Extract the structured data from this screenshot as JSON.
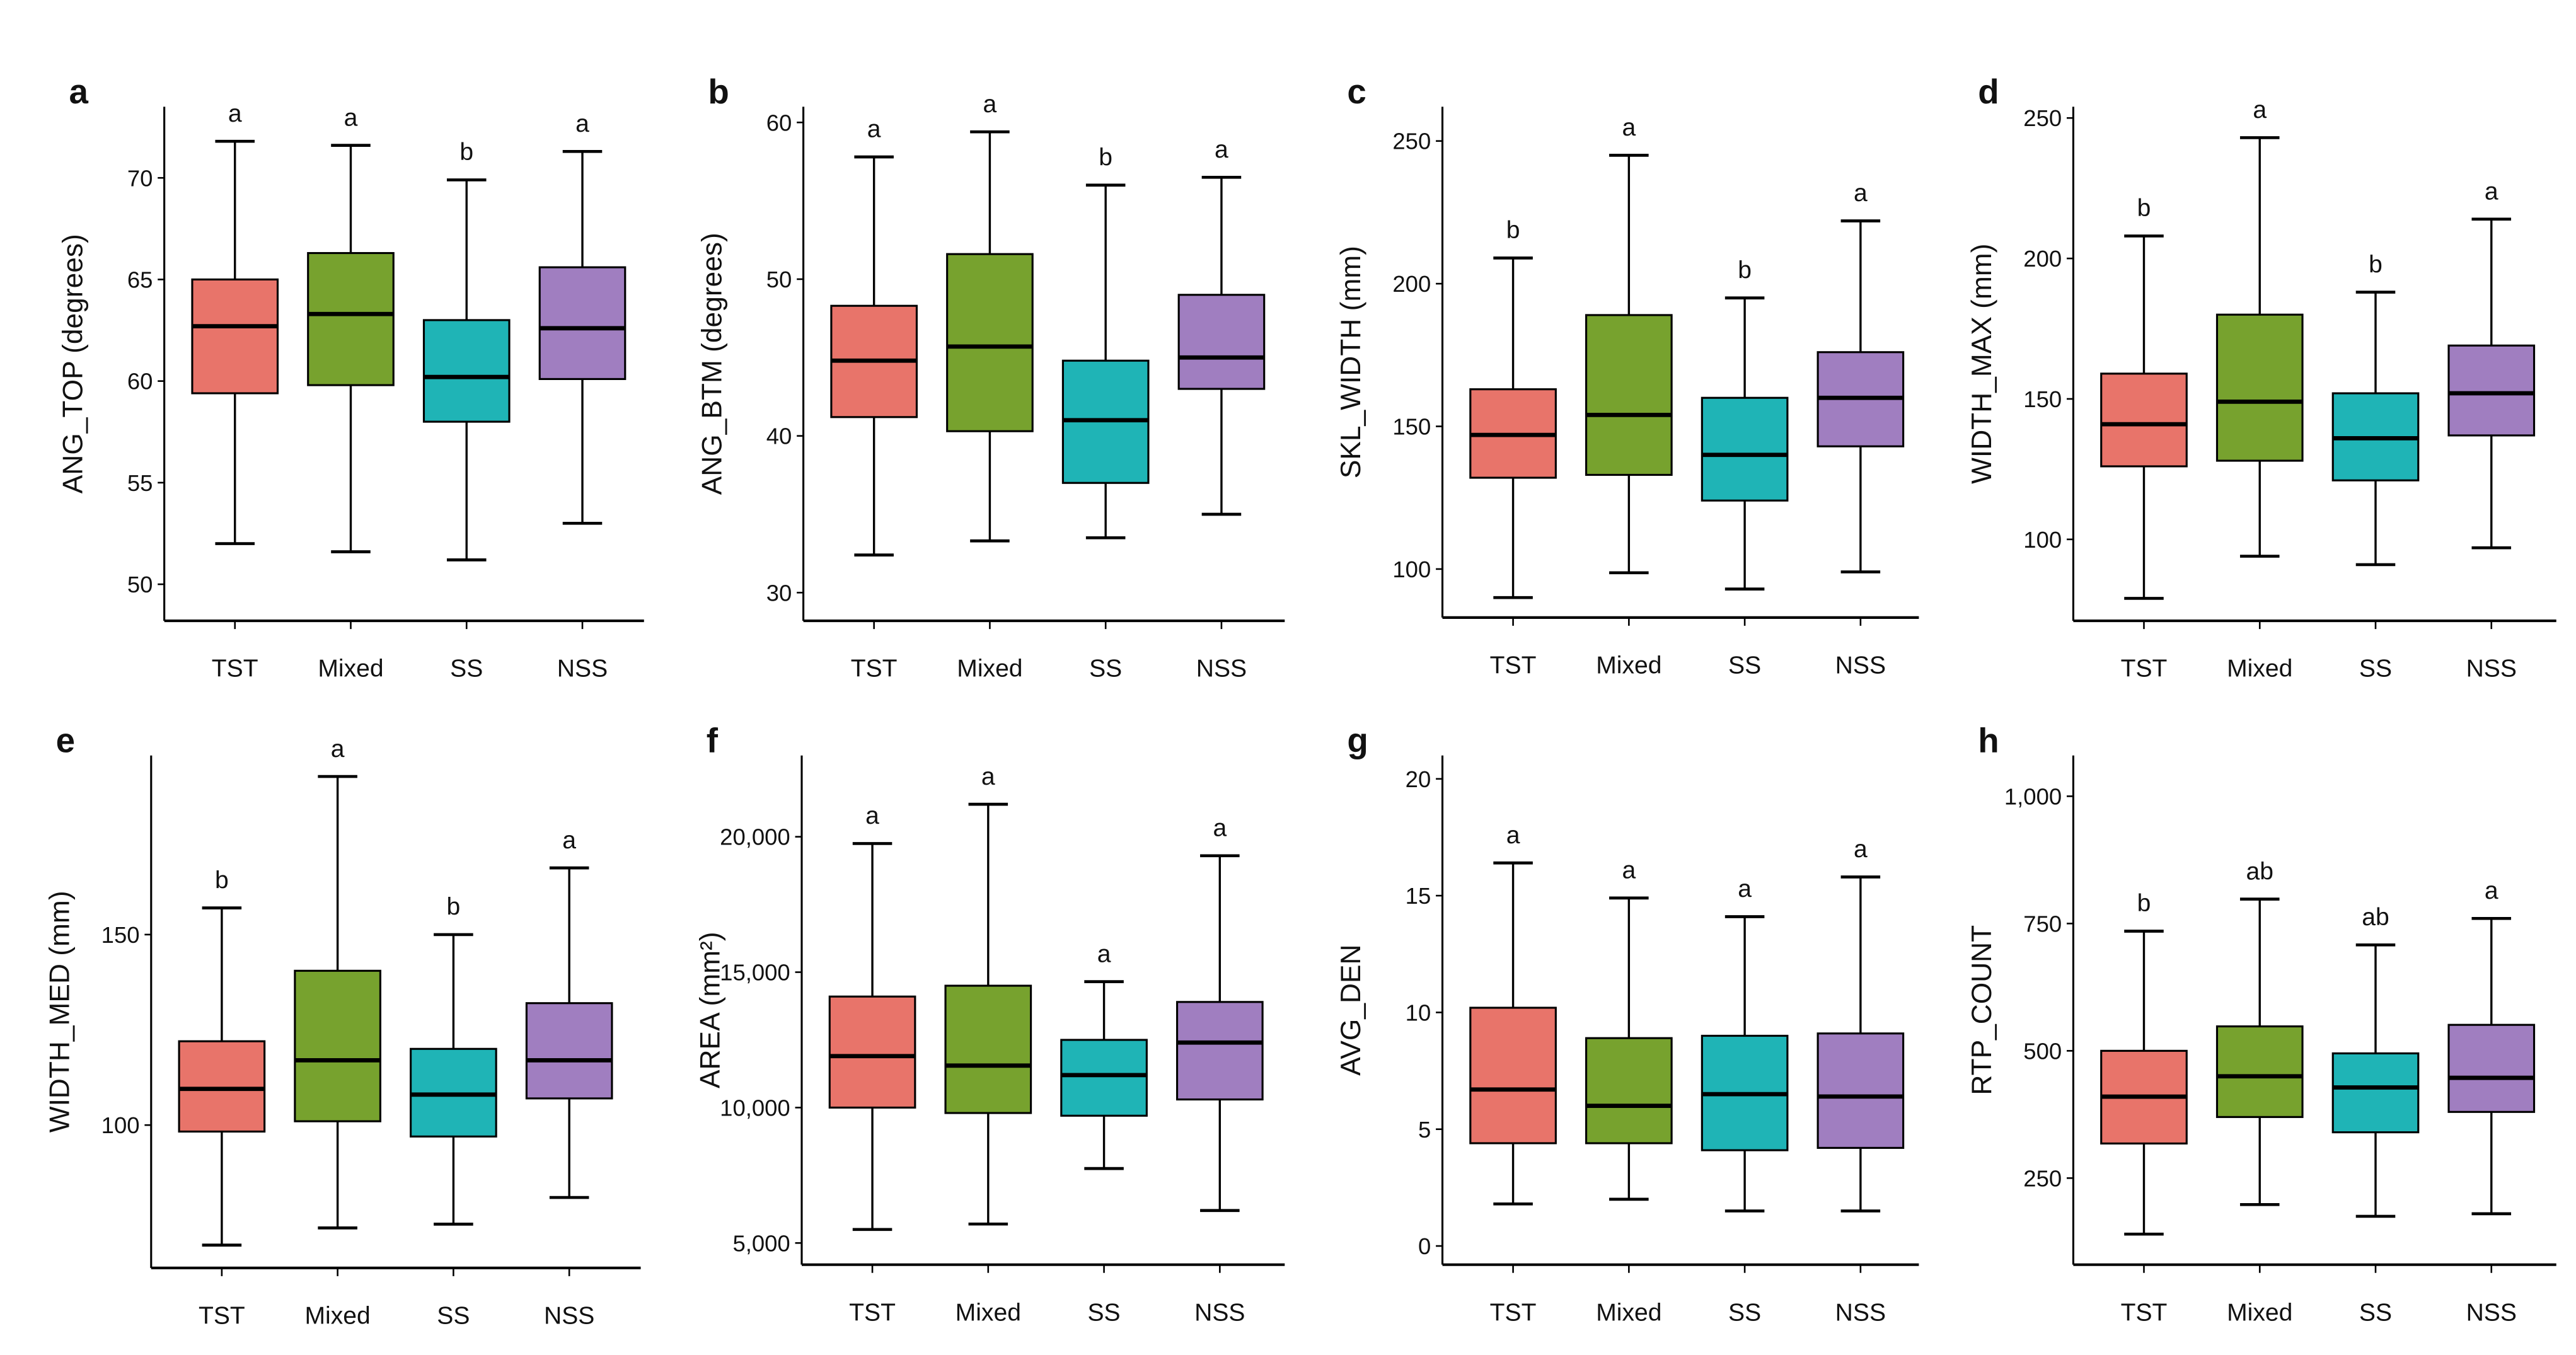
{
  "chart_data": [
    {
      "panel": "a",
      "type": "box",
      "ylabel": "ANG_TOP (degrees)",
      "ylim": [
        48.2,
        73.5
      ],
      "yticks": [
        50,
        55,
        60,
        65,
        70
      ],
      "yticklabels": [
        "50",
        "55",
        "60",
        "65",
        "70"
      ],
      "categories": [
        "TST",
        "Mixed",
        "SS",
        "NSS"
      ],
      "boxes": [
        [
          52,
          59.4,
          62.7,
          65,
          71.8
        ],
        [
          51.6,
          59.8,
          63.3,
          66.3,
          71.6
        ],
        [
          51.2,
          58,
          60.2,
          63,
          69.9
        ],
        [
          53,
          60.1,
          62.6,
          65.6,
          71.3
        ]
      ],
      "letters": [
        "a",
        "a",
        "b",
        "a"
      ]
    },
    {
      "panel": "b",
      "type": "box",
      "ylabel": "ANG_BTM (degrees)",
      "ylim": [
        28.2,
        61
      ],
      "yticks": [
        30,
        40,
        50,
        60
      ],
      "yticklabels": [
        "30",
        "40",
        "50",
        "60"
      ],
      "categories": [
        "TST",
        "Mixed",
        "SS",
        "NSS"
      ],
      "boxes": [
        [
          32.4,
          41.2,
          44.8,
          48.3,
          57.8
        ],
        [
          33.3,
          40.3,
          45.7,
          51.6,
          59.4
        ],
        [
          33.5,
          37,
          41,
          44.8,
          56
        ],
        [
          35,
          43,
          45,
          49,
          56.5
        ]
      ],
      "letters": [
        "a",
        "a",
        "b",
        "a"
      ]
    },
    {
      "panel": "c",
      "type": "box",
      "ylabel": "SKL_WIDTH (mm)",
      "ylim": [
        83,
        262
      ],
      "yticks": [
        100,
        150,
        200,
        250
      ],
      "yticklabels": [
        "100",
        "150",
        "200",
        "250"
      ],
      "categories": [
        "TST",
        "Mixed",
        "SS",
        "NSS"
      ],
      "boxes": [
        [
          90,
          132,
          147,
          163,
          209
        ],
        [
          98.7,
          133,
          154,
          189,
          245
        ],
        [
          93,
          124,
          140,
          160,
          195
        ],
        [
          99,
          143,
          160,
          176,
          222
        ]
      ],
      "letters": [
        "b",
        "a",
        "b",
        "a"
      ]
    },
    {
      "panel": "d",
      "type": "box",
      "ylabel": "WIDTH_MAX (mm)",
      "ylim": [
        71,
        254
      ],
      "yticks": [
        100,
        150,
        200,
        250
      ],
      "yticklabels": [
        "100",
        "150",
        "200",
        "250"
      ],
      "categories": [
        "TST",
        "Mixed",
        "SS",
        "NSS"
      ],
      "boxes": [
        [
          79,
          126,
          141,
          159,
          208
        ],
        [
          94,
          128,
          149,
          180,
          243
        ],
        [
          91,
          121,
          136,
          152,
          188
        ],
        [
          97,
          137,
          152,
          169,
          214
        ]
      ],
      "letters": [
        "b",
        "a",
        "b",
        "a"
      ]
    },
    {
      "panel": "e",
      "type": "box",
      "ylabel": "WIDTH_MED (mm)",
      "ylim": [
        62.5,
        197
      ],
      "yticks": [
        100,
        150
      ],
      "yticklabels": [
        "100",
        "150"
      ],
      "categories": [
        "TST",
        "Mixed",
        "SS",
        "NSS"
      ],
      "boxes": [
        [
          68.5,
          98.3,
          109.5,
          122,
          157
        ],
        [
          73,
          101,
          117,
          140.5,
          191.5
        ],
        [
          74,
          97,
          108,
          120,
          150
        ],
        [
          81,
          107,
          117,
          132,
          167.5
        ]
      ],
      "letters": [
        "b",
        "a",
        "b",
        "a"
      ]
    },
    {
      "panel": "f",
      "type": "box",
      "ylabel": "AREA (mm²)",
      "ylim": [
        4200,
        23000
      ],
      "yticks": [
        5000,
        10000,
        15000,
        20000
      ],
      "yticklabels": [
        "5,000",
        "10,000",
        "15,000",
        "20,000"
      ],
      "categories": [
        "TST",
        "Mixed",
        "SS",
        "NSS"
      ],
      "boxes": [
        [
          5500,
          10000,
          11900,
          14100,
          19750
        ],
        [
          5700,
          9800,
          11550,
          14500,
          21200
        ],
        [
          7750,
          9700,
          11200,
          12500,
          14650
        ],
        [
          6200,
          10300,
          12400,
          13900,
          19300
        ]
      ],
      "letters": [
        "a",
        "a",
        "a",
        "a"
      ]
    },
    {
      "panel": "g",
      "type": "box",
      "ylabel": "AVG_DEN",
      "ylim": [
        -0.8,
        21
      ],
      "yticks": [
        0,
        5,
        10,
        15,
        20
      ],
      "yticklabels": [
        "0",
        "5",
        "10",
        "15",
        "20"
      ],
      "categories": [
        "TST",
        "Mixed",
        "SS",
        "NSS"
      ],
      "boxes": [
        [
          1.8,
          4.4,
          6.7,
          10.2,
          16.4
        ],
        [
          2,
          4.4,
          6,
          8.9,
          14.9
        ],
        [
          1.5,
          4.1,
          6.5,
          9,
          14.1
        ],
        [
          1.5,
          4.2,
          6.4,
          9.1,
          15.8
        ]
      ],
      "letters": [
        "a",
        "a",
        "a",
        "a"
      ]
    },
    {
      "panel": "h",
      "type": "box",
      "ylabel": "RTP_COUNT",
      "ylim": [
        80,
        1080
      ],
      "yticks": [
        250,
        500,
        750,
        1000
      ],
      "yticklabels": [
        "250",
        "500",
        "750",
        "1,000"
      ],
      "categories": [
        "TST",
        "Mixed",
        "SS",
        "NSS"
      ],
      "boxes": [
        [
          140,
          318,
          410,
          500,
          735
        ],
        [
          198,
          370,
          450,
          548,
          798
        ],
        [
          175,
          340,
          428,
          495,
          708
        ],
        [
          180,
          380,
          447,
          551,
          760
        ]
      ],
      "letters": [
        "b",
        "ab",
        "ab",
        "a"
      ]
    }
  ],
  "colors": [
    "#E8746A",
    "#77A22E",
    "#1FB4B6",
    "#A07EC0"
  ]
}
